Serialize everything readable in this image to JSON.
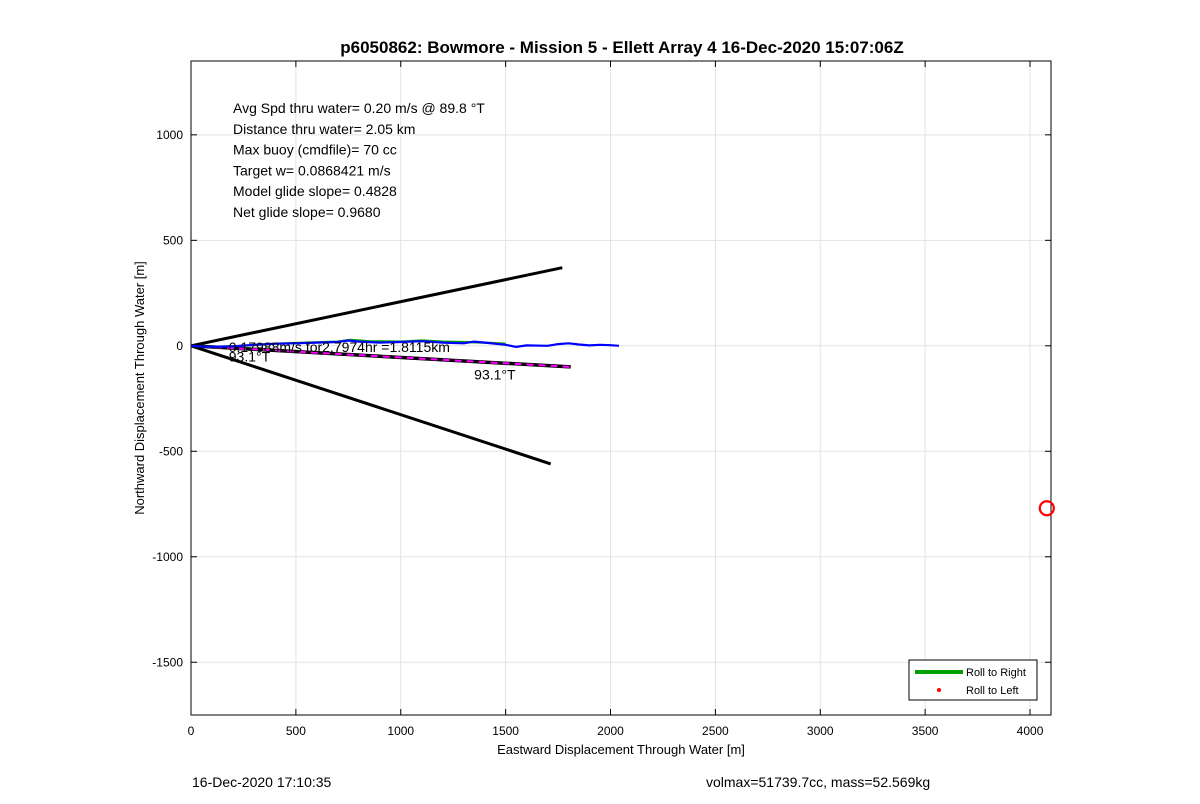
{
  "chart_data": {
    "type": "line",
    "title": "p6050862: Bowmore - Mission 5 - Ellett Array 4 16-Dec-2020 15:07:06Z",
    "xlabel": "Eastward Displacement Through Water [m]",
    "ylabel": "Northward Displacement Through Water [m]",
    "xlim": [
      0,
      4100
    ],
    "ylim": [
      -1750,
      1350
    ],
    "xticks": [
      0,
      500,
      1000,
      1500,
      2000,
      2500,
      3000,
      3500,
      4000
    ],
    "xtick_labels": [
      "0",
      "500",
      "1000",
      "1500",
      "2000",
      "2500",
      "3000",
      "3500",
      "4000"
    ],
    "yticks": [
      -1500,
      -1000,
      -500,
      0,
      500,
      1000
    ],
    "ytick_labels": [
      "-1500",
      "-1000",
      "-500",
      "0",
      "500",
      "1000"
    ],
    "grid": true,
    "legend_position": "bottom-right",
    "legend": [
      {
        "label": "Roll to Right",
        "color": "#00a000",
        "style": "line"
      },
      {
        "label": "Roll to Left",
        "color": "#ff0000",
        "style": "dot"
      }
    ],
    "stats_lines": [
      "Avg Spd thru water=  0.20 m/s @  89.8 °T",
      "Distance thru water=  2.05 km",
      "Max buoy (cmdfile)= 70 cc",
      "Target w= 0.0868421 m/s",
      "Model glide slope= 0.4828",
      "Net glide slope= 0.9680"
    ],
    "annotations": [
      {
        "text": "0.17988m/s for2.7974hr =1.8115km",
        "x": 180,
        "y": -30
      },
      {
        "text": "93.1°T",
        "x": 180,
        "y": -75
      },
      {
        "text": "93.1°T",
        "x": 1350,
        "y": -160
      }
    ],
    "series": [
      {
        "kind": "cone-upper",
        "color": "#000000",
        "points": [
          [
            0,
            0
          ],
          [
            1770,
            370
          ]
        ]
      },
      {
        "kind": "cone-lower",
        "color": "#000000",
        "points": [
          [
            0,
            0
          ],
          [
            1715,
            -560
          ]
        ]
      },
      {
        "kind": "heading",
        "color": "#000000",
        "points": [
          [
            0,
            0
          ],
          [
            1810,
            -100
          ]
        ]
      },
      {
        "kind": "heading-overlay",
        "color": "#ff00ff",
        "points": [
          [
            0,
            0
          ],
          [
            1810,
            -100
          ]
        ]
      },
      {
        "kind": "track-green",
        "color": "#00a000",
        "points": [
          [
            0,
            0
          ],
          [
            100,
            -5
          ],
          [
            250,
            0
          ],
          [
            400,
            10
          ],
          [
            550,
            15
          ],
          [
            700,
            20
          ],
          [
            760,
            28
          ],
          [
            850,
            22
          ],
          [
            1000,
            20
          ],
          [
            1100,
            25
          ],
          [
            1200,
            20
          ],
          [
            1300,
            18
          ],
          [
            1400,
            15
          ],
          [
            1500,
            10
          ]
        ]
      },
      {
        "kind": "track-blue",
        "color": "#0000ff",
        "points": [
          [
            0,
            0
          ],
          [
            80,
            -5
          ],
          [
            200,
            -3
          ],
          [
            300,
            5
          ],
          [
            400,
            10
          ],
          [
            500,
            12
          ],
          [
            600,
            15
          ],
          [
            700,
            18
          ],
          [
            750,
            25
          ],
          [
            800,
            20
          ],
          [
            900,
            15
          ],
          [
            1000,
            18
          ],
          [
            1100,
            22
          ],
          [
            1200,
            15
          ],
          [
            1300,
            12
          ],
          [
            1350,
            20
          ],
          [
            1400,
            15
          ],
          [
            1500,
            5
          ],
          [
            1550,
            -5
          ],
          [
            1600,
            2
          ],
          [
            1700,
            0
          ],
          [
            1750,
            8
          ],
          [
            1800,
            12
          ],
          [
            1850,
            6
          ],
          [
            1900,
            2
          ],
          [
            1950,
            5
          ],
          [
            2000,
            3
          ],
          [
            2040,
            0
          ]
        ]
      }
    ],
    "marker": {
      "shape": "circle",
      "color": "#ff0000",
      "x": 4080,
      "y": -770
    }
  },
  "footer": {
    "timestamp": "16-Dec-2020 17:10:35",
    "summary": "volmax=51739.7cc, mass=52.569kg"
  }
}
